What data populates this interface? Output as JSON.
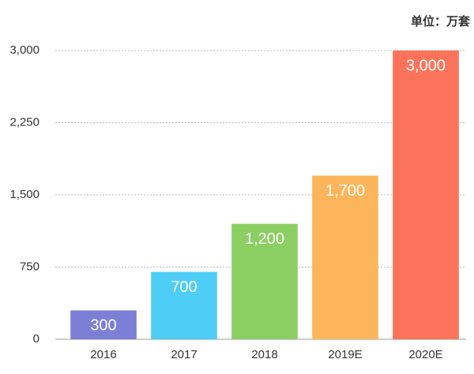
{
  "chart_data": {
    "type": "bar",
    "unit_label": "单位：万套",
    "categories": [
      "2016",
      "2017",
      "2018",
      "2019E",
      "2020E"
    ],
    "values": [
      300,
      700,
      1200,
      1700,
      3000
    ],
    "value_labels": [
      "300",
      "700",
      "1,200",
      "1,700",
      "3,000"
    ],
    "colors": [
      "#7b7fd6",
      "#4ecdf6",
      "#8bcf62",
      "#fdb55b",
      "#fb735a"
    ],
    "ylim": [
      0,
      3000
    ],
    "yticks": [
      0,
      750,
      {
        "value": 1500,
        "label": "1,500"
      },
      {
        "value": 2250,
        "label": "2,250"
      },
      {
        "value": 3000,
        "label": "3,000"
      }
    ],
    "grid": true
  }
}
